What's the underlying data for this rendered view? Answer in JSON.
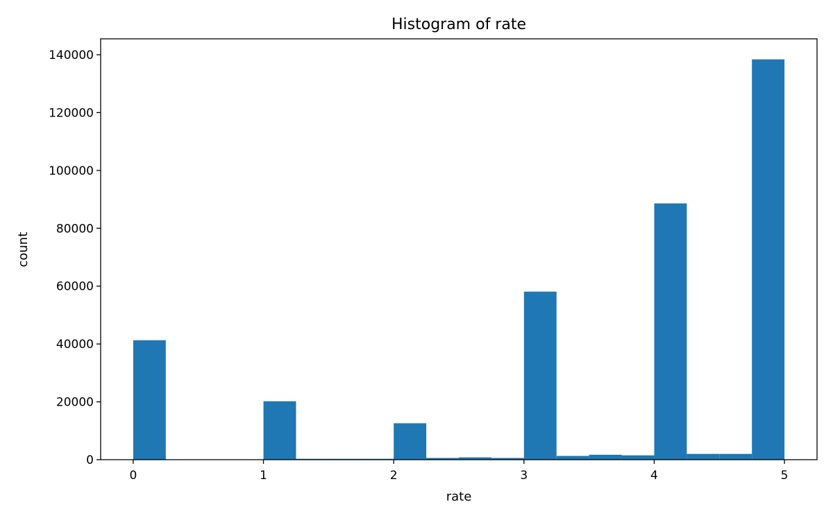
{
  "chart_data": {
    "type": "bar",
    "title": "Histogram of rate",
    "xlabel": "rate",
    "ylabel": "count",
    "xlim": [
      -0.25,
      5.25
    ],
    "ylim": [
      0,
      145500
    ],
    "xticks": [
      0,
      1,
      2,
      3,
      4,
      5
    ],
    "yticks": [
      0,
      20000,
      40000,
      60000,
      80000,
      100000,
      120000,
      140000
    ],
    "bin_width": 0.25,
    "bins": [
      {
        "start": 0.0,
        "end": 0.25,
        "count": 41300
      },
      {
        "start": 0.25,
        "end": 0.5,
        "count": 0
      },
      {
        "start": 0.5,
        "end": 0.75,
        "count": 0
      },
      {
        "start": 0.75,
        "end": 1.0,
        "count": 0
      },
      {
        "start": 1.0,
        "end": 1.25,
        "count": 20200
      },
      {
        "start": 1.25,
        "end": 1.5,
        "count": 300
      },
      {
        "start": 1.5,
        "end": 1.75,
        "count": 300
      },
      {
        "start": 1.75,
        "end": 2.0,
        "count": 300
      },
      {
        "start": 2.0,
        "end": 2.25,
        "count": 12600
      },
      {
        "start": 2.25,
        "end": 2.5,
        "count": 600
      },
      {
        "start": 2.5,
        "end": 2.75,
        "count": 800
      },
      {
        "start": 2.75,
        "end": 3.0,
        "count": 600
      },
      {
        "start": 3.0,
        "end": 3.25,
        "count": 58100
      },
      {
        "start": 3.25,
        "end": 3.5,
        "count": 1300
      },
      {
        "start": 3.5,
        "end": 3.75,
        "count": 1700
      },
      {
        "start": 3.75,
        "end": 4.0,
        "count": 1500
      },
      {
        "start": 4.0,
        "end": 4.25,
        "count": 88600
      },
      {
        "start": 4.25,
        "end": 4.5,
        "count": 2000
      },
      {
        "start": 4.5,
        "end": 4.75,
        "count": 2000
      },
      {
        "start": 4.75,
        "end": 5.0,
        "count": 138400
      }
    ],
    "bar_color": "#1f77b4",
    "grid": false
  }
}
